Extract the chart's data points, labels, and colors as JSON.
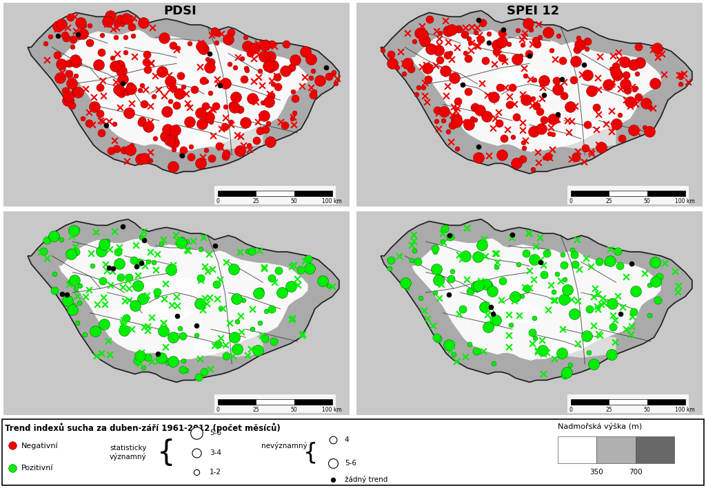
{
  "title_top_left": "PDSI",
  "title_top_right": "SPEI 12",
  "legend_title": "Trend indexů sucha za duben-září 1961-2012 (počet měsíců)",
  "legend_negative_label": "Negativní",
  "legend_positive_label": "Pozitivní",
  "legend_stat_label": "statisticky\nvýznamný",
  "legend_insig_label": "nevýznamný",
  "legend_sizes": [
    "5-6",
    "3-4",
    "1-2"
  ],
  "legend_insig_sizes": [
    "4",
    "5-6"
  ],
  "legend_dot_label": "žádný trend",
  "elevation_title": "Nadmořská výška (m)",
  "elevation_labels": [
    "350",
    "700"
  ],
  "elevation_colors": [
    "#ffffff",
    "#b0b0b0",
    "#686868"
  ],
  "background_color": "#ffffff",
  "border_color": "#000000",
  "negative_color": "#ee0000",
  "positive_color": "#00ee00",
  "figure_width": 10.24,
  "figure_height": 7.09,
  "czech_outline_x": [
    0.13,
    0.16,
    0.19,
    0.21,
    0.25,
    0.27,
    0.3,
    0.33,
    0.36,
    0.37,
    0.38,
    0.4,
    0.43,
    0.46,
    0.5,
    0.53,
    0.56,
    0.58,
    0.59,
    0.61,
    0.63,
    0.65,
    0.67,
    0.69,
    0.71,
    0.73,
    0.75,
    0.77,
    0.8,
    0.83,
    0.86,
    0.89,
    0.91,
    0.93,
    0.95,
    0.96,
    0.95,
    0.93,
    0.9,
    0.89,
    0.88,
    0.87,
    0.88,
    0.88,
    0.87,
    0.85,
    0.82,
    0.8,
    0.77,
    0.74,
    0.72,
    0.7,
    0.68,
    0.65,
    0.63,
    0.6,
    0.57,
    0.55,
    0.53,
    0.5,
    0.47,
    0.44,
    0.41,
    0.38,
    0.35,
    0.32,
    0.3,
    0.28,
    0.26,
    0.24,
    0.22,
    0.19,
    0.17,
    0.15,
    0.13,
    0.11,
    0.09,
    0.07,
    0.06,
    0.07,
    0.09,
    0.11,
    0.13
  ],
  "czech_outline_y": [
    0.92,
    0.95,
    0.96,
    0.95,
    0.94,
    0.92,
    0.91,
    0.93,
    0.94,
    0.92,
    0.9,
    0.88,
    0.88,
    0.89,
    0.88,
    0.88,
    0.87,
    0.87,
    0.85,
    0.84,
    0.83,
    0.84,
    0.85,
    0.84,
    0.82,
    0.8,
    0.79,
    0.78,
    0.78,
    0.79,
    0.78,
    0.77,
    0.76,
    0.74,
    0.72,
    0.68,
    0.63,
    0.6,
    0.58,
    0.56,
    0.54,
    0.5,
    0.47,
    0.44,
    0.4,
    0.37,
    0.35,
    0.33,
    0.32,
    0.3,
    0.28,
    0.27,
    0.25,
    0.24,
    0.22,
    0.2,
    0.19,
    0.18,
    0.17,
    0.16,
    0.17,
    0.18,
    0.19,
    0.2,
    0.2,
    0.21,
    0.23,
    0.25,
    0.27,
    0.3,
    0.32,
    0.35,
    0.38,
    0.42,
    0.46,
    0.52,
    0.58,
    0.65,
    0.72,
    0.78,
    0.82,
    0.86,
    0.92
  ]
}
